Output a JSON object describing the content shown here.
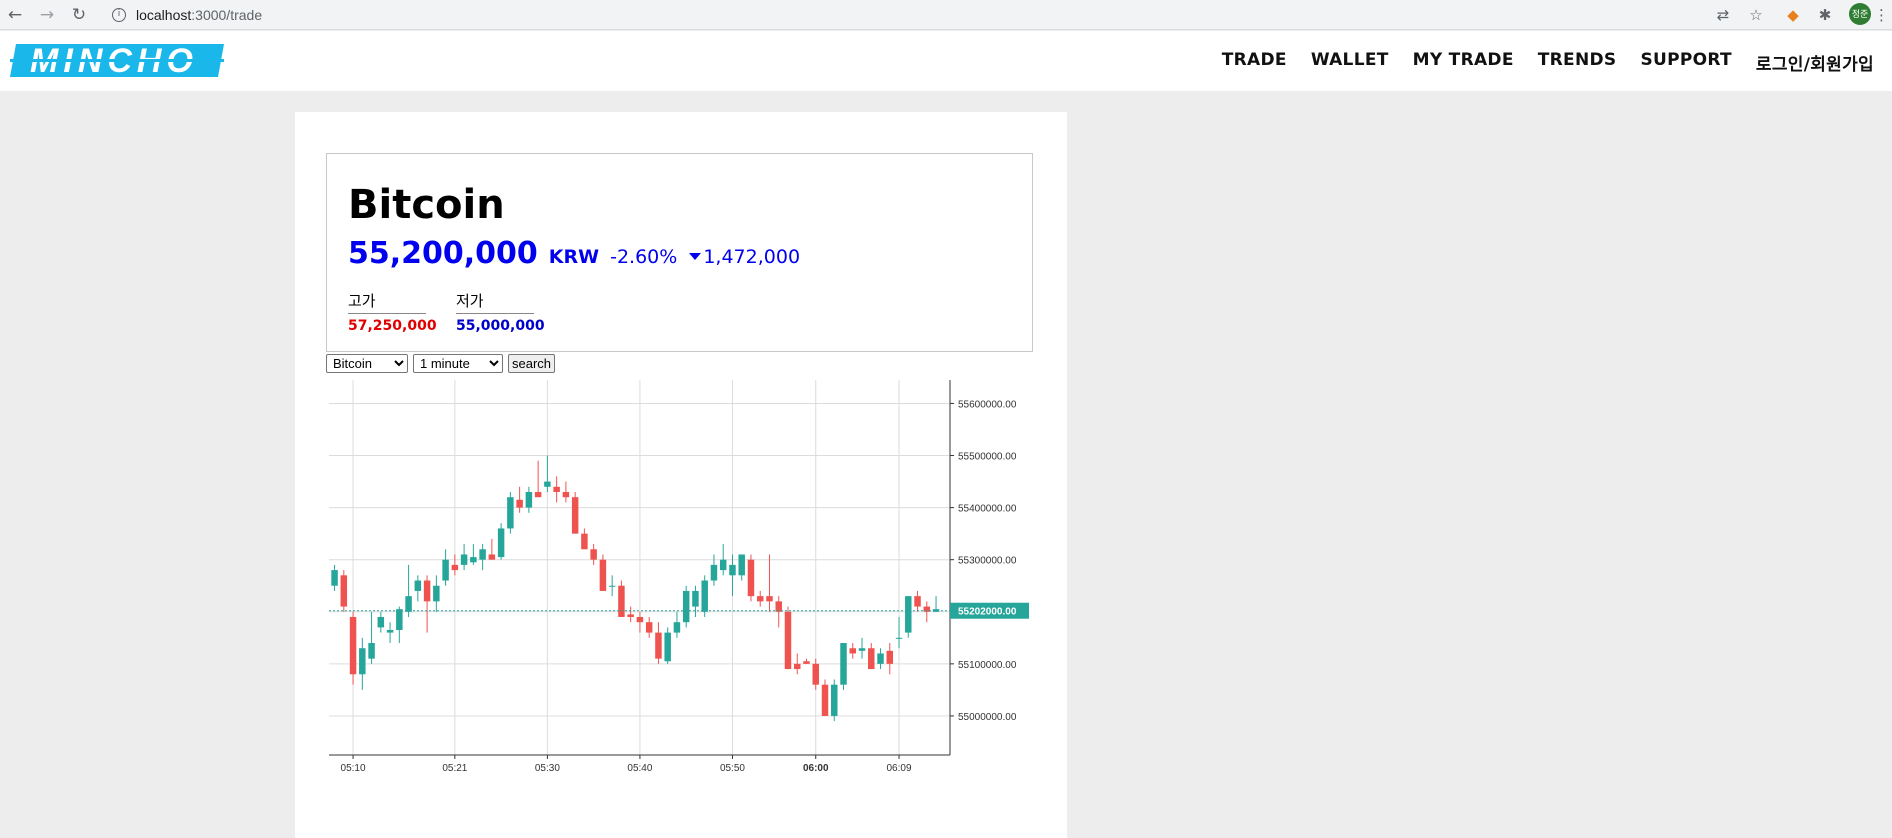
{
  "browser": {
    "url_host": "localhost",
    "url_path": ":3000/trade",
    "avatar_text": "정준"
  },
  "header": {
    "logo_text": "MINCHO",
    "menu": [
      "TRADE",
      "WALLET",
      "MY TRADE",
      "TRENDS",
      "SUPPORT",
      "로그인/회원가입"
    ],
    "logo_color": "#1ab7ea"
  },
  "coin": {
    "name": "Bitcoin",
    "price": "55,200,000",
    "currency": "KRW",
    "rate": "-2.60%",
    "change": "1,472,000",
    "high_label": "고가",
    "high_value": "57,250,000",
    "low_label": "저가",
    "low_value": "55,000,000"
  },
  "controls": {
    "coin_options": [
      "Bitcoin"
    ],
    "interval_options": [
      "1 minute"
    ],
    "search_label": "search"
  },
  "colors": {
    "up": "#26a69a",
    "down": "#ef5350",
    "price_color": "#0000ee"
  },
  "chart_data": {
    "type": "candlestick",
    "title": "",
    "xlabel": "",
    "ylabel": "",
    "ylim": [
      54925000,
      55645000
    ],
    "y_ticks": [
      55000000,
      55100000,
      55200000,
      55300000,
      55400000,
      55500000,
      55600000
    ],
    "y_tick_labels": [
      "55000000.00",
      "55100000.00",
      "55200000.00",
      "55300000.00",
      "55400000.00",
      "55500000.00",
      "55600000.00"
    ],
    "x_tick_labels": [
      {
        "label": "05:10",
        "index": 2,
        "bold": false
      },
      {
        "label": "05:21",
        "index": 13,
        "bold": false
      },
      {
        "label": "05:30",
        "index": 23,
        "bold": false
      },
      {
        "label": "05:40",
        "index": 33,
        "bold": false
      },
      {
        "label": "05:50",
        "index": 43,
        "bold": false
      },
      {
        "label": "06:00",
        "index": 52,
        "bold": true
      },
      {
        "label": "06:09",
        "index": 61,
        "bold": false
      }
    ],
    "last_price": 55202000,
    "last_price_label": "55202000.00",
    "candles": [
      [
        55250000,
        55290000,
        55240000,
        55280000
      ],
      [
        55270000,
        55280000,
        55200000,
        55210000
      ],
      [
        55190000,
        55200000,
        55060000,
        55080000
      ],
      [
        55080000,
        55150000,
        55050000,
        55130000
      ],
      [
        55110000,
        55200000,
        55100000,
        55140000
      ],
      [
        55170000,
        55200000,
        55160000,
        55190000
      ],
      [
        55160000,
        55180000,
        55140000,
        55165000
      ],
      [
        55165000,
        55210000,
        55140000,
        55205000
      ],
      [
        55200000,
        55290000,
        55190000,
        55230000
      ],
      [
        55240000,
        55270000,
        55220000,
        55260000
      ],
      [
        55260000,
        55270000,
        55160000,
        55220000
      ],
      [
        55220000,
        55270000,
        55200000,
        55250000
      ],
      [
        55260000,
        55320000,
        55250000,
        55300000
      ],
      [
        55290000,
        55310000,
        55270000,
        55280000
      ],
      [
        55290000,
        55330000,
        55280000,
        55310000
      ],
      [
        55295000,
        55330000,
        55290000,
        55305000
      ],
      [
        55300000,
        55330000,
        55280000,
        55320000
      ],
      [
        55310000,
        55340000,
        55300000,
        55300000
      ],
      [
        55305000,
        55370000,
        55300000,
        55360000
      ],
      [
        55360000,
        55430000,
        55350000,
        55420000
      ],
      [
        55415000,
        55440000,
        55390000,
        55400000
      ],
      [
        55400000,
        55440000,
        55390000,
        55430000
      ],
      [
        55430000,
        55490000,
        55420000,
        55420000
      ],
      [
        55440000,
        55500000,
        55430000,
        55450000
      ],
      [
        55440000,
        55460000,
        55410000,
        55430000
      ],
      [
        55430000,
        55450000,
        55410000,
        55420000
      ],
      [
        55420000,
        55430000,
        55350000,
        55350000
      ],
      [
        55350000,
        55360000,
        55320000,
        55320000
      ],
      [
        55320000,
        55330000,
        55290000,
        55300000
      ],
      [
        55300000,
        55310000,
        55240000,
        55240000
      ],
      [
        55250000,
        55270000,
        55230000,
        55250000
      ],
      [
        55250000,
        55260000,
        55190000,
        55190000
      ],
      [
        55195000,
        55210000,
        55180000,
        55190000
      ],
      [
        55190000,
        55200000,
        55160000,
        55180000
      ],
      [
        55180000,
        55190000,
        55150000,
        55160000
      ],
      [
        55160000,
        55180000,
        55100000,
        55110000
      ],
      [
        55105000,
        55170000,
        55100000,
        55160000
      ],
      [
        55160000,
        55200000,
        55150000,
        55180000
      ],
      [
        55180000,
        55250000,
        55170000,
        55240000
      ],
      [
        55210000,
        55250000,
        55190000,
        55240000
      ],
      [
        55200000,
        55270000,
        55190000,
        55260000
      ],
      [
        55260000,
        55310000,
        55250000,
        55290000
      ],
      [
        55280000,
        55330000,
        55270000,
        55300000
      ],
      [
        55270000,
        55310000,
        55230000,
        55290000
      ],
      [
        55270000,
        55310000,
        55260000,
        55310000
      ],
      [
        55300000,
        55310000,
        55220000,
        55230000
      ],
      [
        55230000,
        55240000,
        55210000,
        55220000
      ],
      [
        55230000,
        55310000,
        55200000,
        55220000
      ],
      [
        55220000,
        55230000,
        55170000,
        55200000
      ],
      [
        55200000,
        55210000,
        55090000,
        55090000
      ],
      [
        55100000,
        55120000,
        55080000,
        55090000
      ],
      [
        55105000,
        55110000,
        55100000,
        55100000
      ],
      [
        55100000,
        55110000,
        55050000,
        55060000
      ],
      [
        55060000,
        55070000,
        55000000,
        55000000
      ],
      [
        55000000,
        55070000,
        54990000,
        55060000
      ],
      [
        55060000,
        55140000,
        55050000,
        55140000
      ],
      [
        55130000,
        55140000,
        55110000,
        55120000
      ],
      [
        55125000,
        55150000,
        55110000,
        55130000
      ],
      [
        55130000,
        55140000,
        55090000,
        55090000
      ],
      [
        55100000,
        55130000,
        55090000,
        55120000
      ],
      [
        55125000,
        55140000,
        55080000,
        55100000
      ],
      [
        55150000,
        55190000,
        55130000,
        55150000
      ],
      [
        55160000,
        55230000,
        55150000,
        55230000
      ],
      [
        55230000,
        55240000,
        55200000,
        55210000
      ],
      [
        55210000,
        55220000,
        55180000,
        55200000
      ],
      [
        55200000,
        55230000,
        55200000,
        55205000
      ]
    ]
  }
}
